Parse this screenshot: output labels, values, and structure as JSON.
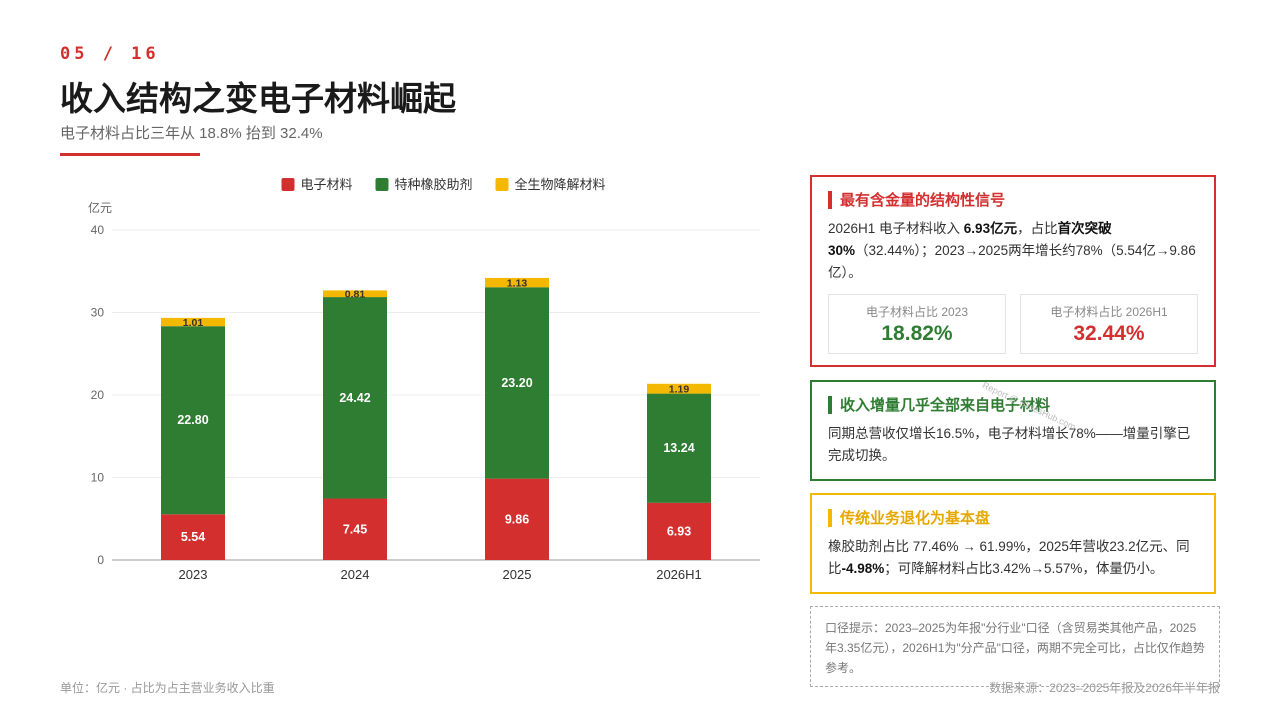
{
  "header": {
    "page_num": "05 / 16",
    "title": "收入结构之变电子材料崛起",
    "subtitle": "电子材料占比三年从 18.8% 抬到 32.4%"
  },
  "footer": {
    "unit": "单位：亿元 · 占比为占主营业务收入比重",
    "source": "数据来源：2023–2025年报及2026年半年报"
  },
  "colors": {
    "red": "#d32f2f",
    "green": "#2e7d32",
    "yellow": "#f5b800"
  },
  "chart_data": {
    "type": "bar",
    "stacked": true,
    "categories": [
      "2023",
      "2024",
      "2025",
      "2026H1"
    ],
    "series": [
      {
        "name": "电子材料",
        "color": "#d32f2f",
        "values": [
          5.54,
          7.45,
          9.86,
          6.93
        ],
        "labels": [
          "5.54",
          "7.45",
          "9.86",
          "6.93"
        ]
      },
      {
        "name": "特种橡胶助剂",
        "color": "#2e7d32",
        "values": [
          22.8,
          24.42,
          23.2,
          13.24
        ],
        "labels": [
          "22.80",
          "24.42",
          "23.20",
          "13.24"
        ]
      },
      {
        "name": "全生物降解材料",
        "color": "#f5b800",
        "values": [
          1.01,
          0.81,
          1.13,
          1.19
        ],
        "labels": [
          "1.01",
          "0.81",
          "1.13",
          "1.19"
        ]
      }
    ],
    "ylabel": "亿元",
    "ylim": [
      0,
      40
    ],
    "yticks": [
      0,
      10,
      20,
      30,
      40
    ],
    "ytick_labels": [
      "0",
      "10",
      "20",
      "30",
      "40"
    ],
    "legend_position": "top",
    "grid": true
  },
  "cards": {
    "signal": {
      "title": "最有含金量的结构性信号",
      "body": {
        "p1": "2026H1 电子材料收入 ",
        "b1": "6.93亿元",
        "p2": "，占比",
        "b2": "首次突破30%",
        "p3": "（32.44%）；2023→2025两年增长约78%（5.54亿→9.86亿）。"
      },
      "stat_2023_label": "电子材料占比 2023",
      "stat_2023_value": "18.82%",
      "stat_2026_label": "电子材料占比 2026H1",
      "stat_2026_value": "32.44%"
    },
    "growth": {
      "title": "收入增量几乎全部来自电子材料",
      "body": "同期总营收仅增长16.5%，电子材料增长78%——增量引擎已完成切换。"
    },
    "legacy": {
      "title": "传统业务退化为基本盘",
      "body": {
        "p1": "橡胶助剂占比 77.46% → 61.99%，2025年营收23.2亿元、同比",
        "b1": "-4.98%",
        "p2": "；可降解材料占比3.42%→5.57%，体量仍小。"
      }
    }
  },
  "note": "口径提示：2023–2025为年报\"分行业\"口径（含贸易类其他产品，2025年3.35亿元），2026H1为\"分产品\"口径，两期不完全可比，占比仅作趋势参考。",
  "watermark": "Report @ SlidesHub.com"
}
